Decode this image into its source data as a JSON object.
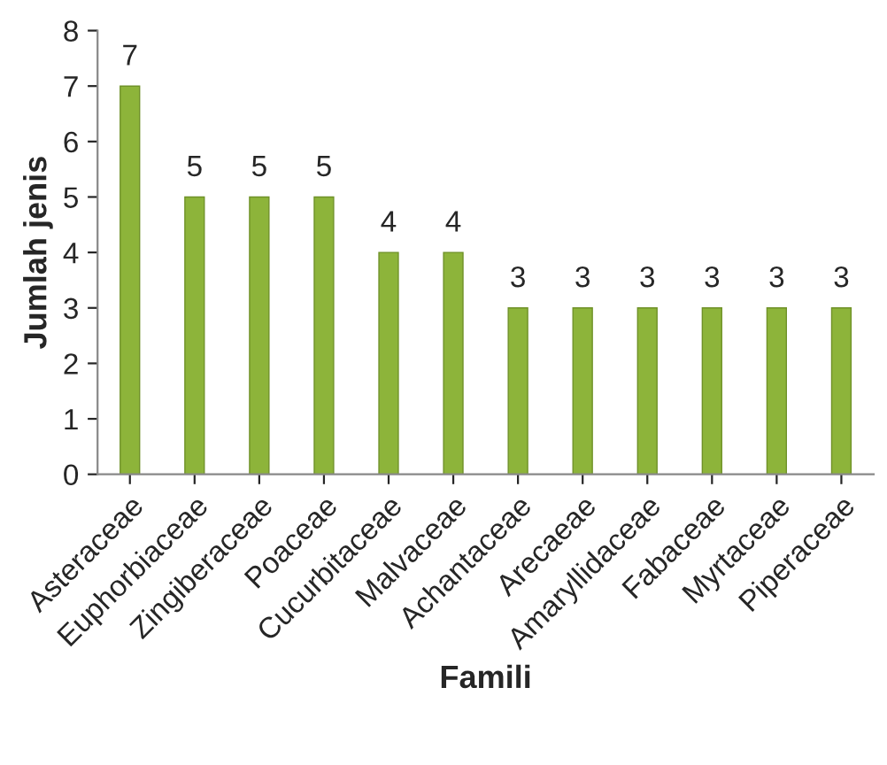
{
  "chart_data": {
    "type": "bar",
    "categories": [
      "Asteraceae",
      "Euphorbiaceae",
      "Zingiberaceae",
      "Poaceae",
      "Cucurbitaceae",
      "Malvaceae",
      "Achantaceae",
      "Arecaeae",
      "Amaryllidaceae",
      "Fabaceae",
      "Myrtaceae",
      "Piperaceae"
    ],
    "values": [
      7,
      5,
      5,
      5,
      4,
      4,
      3,
      3,
      3,
      3,
      3,
      3
    ],
    "color": "#8db43a",
    "xlabel": "Famili",
    "ylabel": "Jumlah jenis",
    "ylim": [
      0,
      8
    ],
    "yticks": [
      0,
      1,
      2,
      3,
      4,
      5,
      6,
      7,
      8
    ],
    "data_labels": true,
    "grid": false,
    "legend": false
  }
}
